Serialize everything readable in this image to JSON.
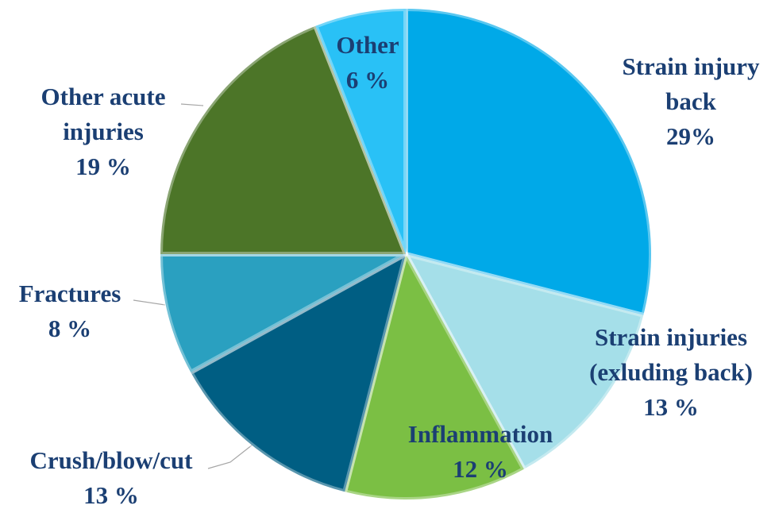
{
  "chart_data": {
    "type": "pie",
    "categories": [
      "Strain injury back",
      "Strain injuries (exluding back)",
      "Inflammation",
      "Crush/blow/cut",
      "Fractures",
      "Other acute injuries",
      "Other"
    ],
    "values": [
      29,
      13,
      12,
      13,
      8,
      19,
      6
    ],
    "value_labels": [
      "29%",
      "13 %",
      "12 %",
      "13 %",
      "8 %",
      "19 %",
      "6 %"
    ],
    "colors": [
      "#00a9e8",
      "#a5dfe9",
      "#7bbf44",
      "#005e83",
      "#2aa0c0",
      "#4c7528",
      "#29c1f6"
    ]
  }
}
